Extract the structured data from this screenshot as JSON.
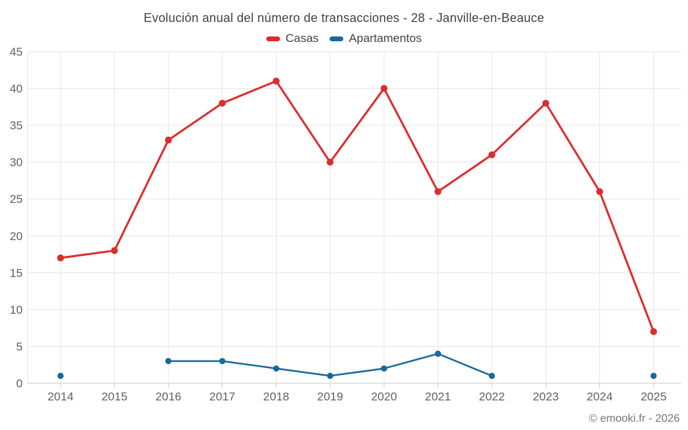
{
  "chart_data": {
    "type": "line",
    "title": "Evolución anual del número de transacciones - 28 - Janville-en-Beauce",
    "categories": [
      "2014",
      "2015",
      "2016",
      "2017",
      "2018",
      "2019",
      "2020",
      "2021",
      "2022",
      "2023",
      "2024",
      "2025"
    ],
    "series": [
      {
        "name": "Casas",
        "color": "#dd2c2c",
        "values": [
          17,
          18,
          33,
          38,
          41,
          30,
          40,
          26,
          31,
          38,
          26,
          7
        ]
      },
      {
        "name": "Apartamentos",
        "color": "#16699e",
        "values": [
          1,
          null,
          3,
          3,
          2,
          1,
          2,
          4,
          1,
          null,
          null,
          1
        ]
      }
    ],
    "ylim": [
      0,
      45
    ],
    "ytick_step": 5,
    "yticks": [
      "0",
      "5",
      "10",
      "15",
      "20",
      "25",
      "30",
      "35",
      "40",
      "45"
    ],
    "grid": true,
    "legend_position": "top",
    "copyright": "© emooki.fr - 2026"
  },
  "style_colors": {
    "title_text": "#424242",
    "axis_label_text": "#616161",
    "gridline": "#e6e6e6",
    "axis_line": "#c9c9c9",
    "copyright_text": "#757575"
  }
}
